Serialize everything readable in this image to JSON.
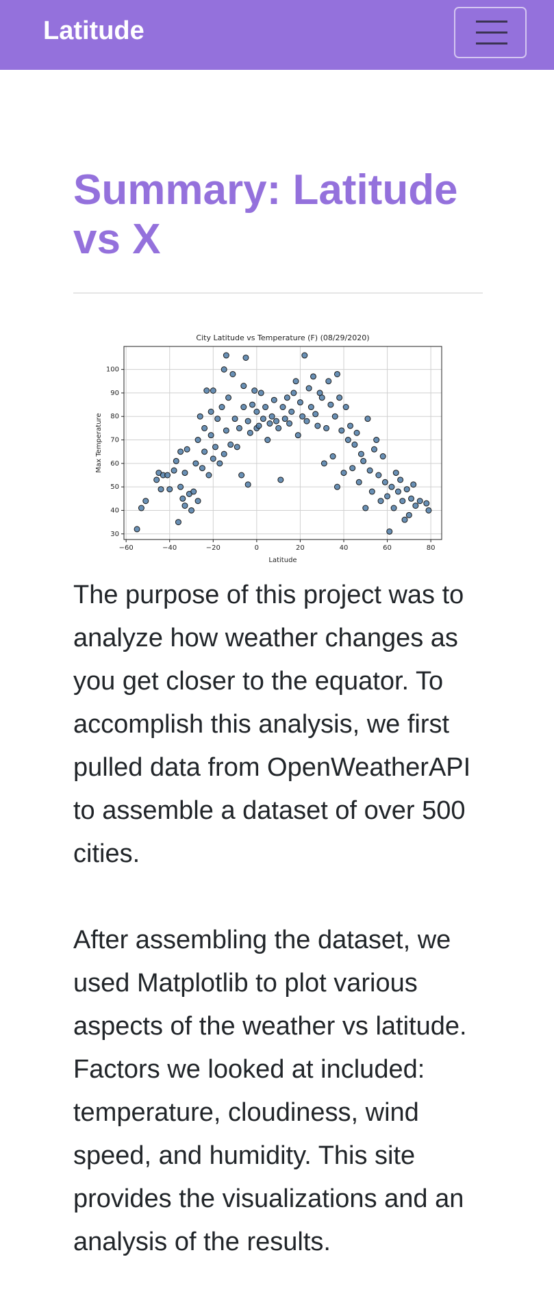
{
  "navbar": {
    "brand": "Latitude"
  },
  "heading": "Summary: Latitude vs X",
  "chart_data": {
    "type": "scatter",
    "title": "City Latitude vs Temperature (F) (08/29/2020)",
    "x_label": "Latitude",
    "y_label": "Max Temperature",
    "color": "#4f7ca8",
    "edge_color": "#1a1a1a",
    "grid": true,
    "xlim": [
      -61,
      85
    ],
    "ylim": [
      27.6,
      109.8
    ],
    "xticks": [
      {
        "value": -60,
        "label": "−60"
      },
      {
        "value": -40,
        "label": "−40"
      },
      {
        "value": -20,
        "label": "−20"
      },
      0,
      20,
      40,
      60,
      80
    ],
    "yticks": [
      30,
      40,
      50,
      60,
      70,
      80,
      90,
      100
    ],
    "x": [
      -55,
      -53,
      -51,
      -46,
      -45,
      -44,
      -43,
      -41,
      -40,
      -38,
      -37,
      -36,
      -35,
      -35,
      -34,
      -33,
      -33,
      -32,
      -31,
      -30,
      -29,
      -28,
      -27,
      -27,
      -26,
      -25,
      -24,
      -24,
      -23,
      -22,
      -21,
      -21,
      -20,
      -20,
      -19,
      -18,
      -17,
      -16,
      -15,
      -15,
      -14,
      -14,
      -13,
      -12,
      -11,
      -10,
      -9,
      -8,
      -7,
      -6,
      -6,
      -5,
      -4,
      -4,
      -3,
      -2,
      -1,
      0,
      0,
      1,
      2,
      3,
      4,
      5,
      6,
      7,
      8,
      9,
      10,
      11,
      12,
      13,
      14,
      15,
      16,
      17,
      18,
      19,
      20,
      21,
      22,
      23,
      24,
      25,
      26,
      27,
      28,
      29,
      30,
      31,
      32,
      33,
      34,
      35,
      36,
      37,
      37,
      38,
      39,
      40,
      41,
      42,
      43,
      44,
      45,
      46,
      47,
      48,
      49,
      50,
      51,
      52,
      53,
      54,
      55,
      56,
      57,
      58,
      59,
      60,
      61,
      62,
      63,
      64,
      65,
      66,
      67,
      68,
      69,
      70,
      71,
      72,
      73,
      75,
      78,
      79
    ],
    "values": [
      32,
      41,
      44,
      53,
      56,
      49,
      55,
      55,
      49,
      57,
      61,
      35,
      50,
      65,
      45,
      42,
      56,
      66,
      47,
      40,
      48,
      60,
      70,
      44,
      80,
      58,
      75,
      65,
      91,
      55,
      82,
      72,
      91,
      62,
      67,
      79,
      60,
      84,
      64,
      100,
      106,
      74,
      88,
      68,
      98,
      79,
      67,
      75,
      55,
      84,
      93,
      105,
      78,
      51,
      73,
      85,
      91,
      82,
      75,
      76,
      90,
      79,
      84,
      70,
      77,
      80,
      87,
      78,
      75,
      53,
      84,
      79,
      88,
      77,
      82,
      90,
      95,
      72,
      86,
      80,
      106,
      78,
      92,
      84,
      97,
      81,
      76,
      90,
      88,
      60,
      75,
      95,
      85,
      63,
      80,
      98,
      50,
      88,
      74,
      56,
      84,
      70,
      76,
      58,
      68,
      73,
      52,
      64,
      61,
      41,
      79,
      57,
      48,
      66,
      70,
      55,
      44,
      63,
      52,
      46,
      31,
      50,
      41,
      56,
      48,
      53,
      44,
      36,
      49,
      38,
      45,
      51,
      42,
      44,
      43,
      40
    ]
  },
  "paragraphs": [
    "The purpose of this project was to analyze how weather changes as you get closer to the equator. To accomplish this analysis, we first pulled data from OpenWeatherAPI to assemble a dataset of over 500 cities.",
    "After assembling the dataset, we used Matplotlib to plot various aspects of the weather vs latitude. Factors we looked at included: temperature, cloudiness, wind speed, and humidity. This site provides the visualizations and an analysis of the results."
  ]
}
